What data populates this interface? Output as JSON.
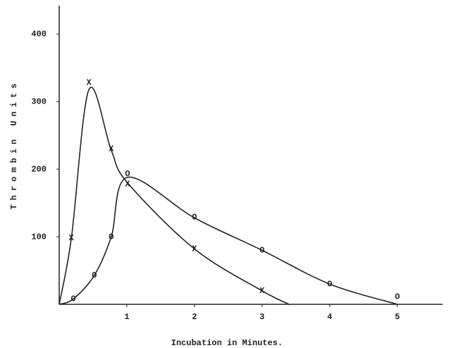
{
  "chart_data": {
    "type": "line",
    "xlabel": "Incubation in Minutes.",
    "ylabel": "Thrombin Units",
    "xlim": [
      0,
      5.7
    ],
    "ylim": [
      0,
      440
    ],
    "xticks": [
      1,
      2,
      3,
      4,
      5
    ],
    "yticks": [
      100,
      200,
      300,
      400
    ],
    "color": "#222222",
    "series": [
      {
        "marker": "X",
        "x": [
          0.18,
          0.44,
          0.77,
          1.01,
          2,
          3
        ],
        "values": [
          98,
          328,
          230,
          178,
          82,
          20
        ],
        "curve_x": [
          0,
          0.18,
          0.44,
          0.77,
          1.01,
          2,
          3,
          3.4
        ],
        "curve_values": [
          0,
          98,
          318,
          228,
          180,
          82,
          20,
          0
        ]
      },
      {
        "marker": "O",
        "x": [
          0.21,
          0.52,
          0.77,
          1.01,
          2,
          3,
          4,
          5
        ],
        "values": [
          8,
          43,
          100,
          193,
          129,
          80,
          30,
          11
        ],
        "curve_x": [
          0,
          0.21,
          0.52,
          0.77,
          1.01,
          2,
          3,
          4,
          5
        ],
        "curve_values": [
          0,
          8,
          43,
          100,
          188,
          128,
          80,
          30,
          0
        ]
      }
    ]
  }
}
